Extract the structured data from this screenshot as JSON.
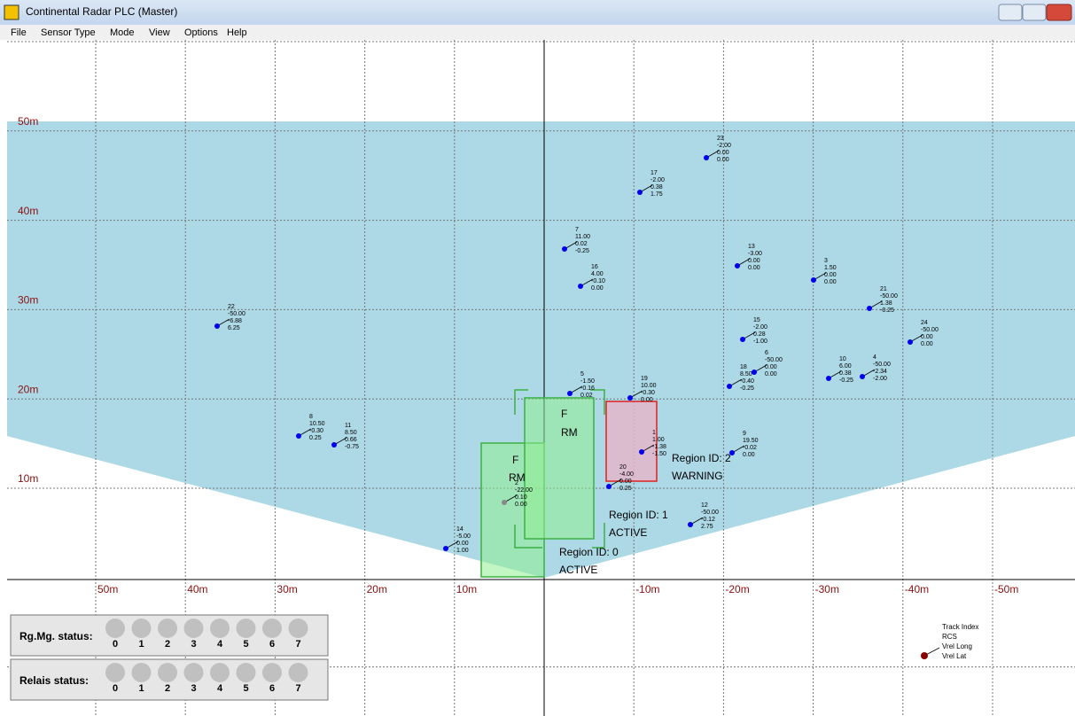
{
  "window": {
    "title": "Continental Radar PLC (Master)"
  },
  "menu": [
    "File",
    "Sensor Type",
    "Mode",
    "View",
    "Options",
    "Help"
  ],
  "y_labels": [
    "50m",
    "40m",
    "30m",
    "20m",
    "10m"
  ],
  "x_labels": [
    "50m",
    "40m",
    "30m",
    "20m",
    "10m",
    "-10m",
    "-20m",
    "-30m",
    "-40m",
    "-50m"
  ],
  "tracks": [
    {
      "index": "23",
      "rcs": "-2.00",
      "vlong": "0.00",
      "vlat": "0.00"
    },
    {
      "index": "17",
      "rcs": "-2.00",
      "vlong": "0.38",
      "vlat": "1.75"
    },
    {
      "index": "7",
      "rcs": "11.00",
      "vlong": "0.02",
      "vlat": "-0.25"
    },
    {
      "index": "16",
      "rcs": "4.00",
      "vlong": "-0.10",
      "vlat": "0.00"
    },
    {
      "index": "13",
      "rcs": "-3.00",
      "vlong": "0.00",
      "vlat": "0.00"
    },
    {
      "index": "3",
      "rcs": "1.50",
      "vlong": "0.00",
      "vlat": "0.00"
    },
    {
      "index": "21",
      "rcs": "-50.00",
      "vlong": "1.38",
      "vlat": "-0.25"
    },
    {
      "index": "22",
      "rcs": "-50.00",
      "vlong": "-6.88",
      "vlat": "6.25"
    },
    {
      "index": "15",
      "rcs": "-2.00",
      "vlong": "0.28",
      "vlat": "-1.00"
    },
    {
      "index": "24",
      "rcs": "-50.00",
      "vlong": "0.00",
      "vlat": "0.00"
    },
    {
      "index": "6",
      "rcs": "-50.00",
      "vlong": "0.00",
      "vlat": "0.00"
    },
    {
      "index": "18",
      "rcs": "8.50",
      "vlong": "-0.40",
      "vlat": "-0.25"
    },
    {
      "index": "10",
      "rcs": "6.00",
      "vlong": "0.38",
      "vlat": "-0.25"
    },
    {
      "index": "4",
      "rcs": "-50.00",
      "vlong": "-2.34",
      "vlat": "-2.00"
    },
    {
      "index": "5",
      "rcs": "-1.50",
      "vlong": "-0.16",
      "vlat": "0.02"
    },
    {
      "index": "19",
      "rcs": "10.00",
      "vlong": "-0.30",
      "vlat": "0.00"
    },
    {
      "index": "8",
      "rcs": "10.50",
      "vlong": "-0.30",
      "vlat": "0.25"
    },
    {
      "index": "11",
      "rcs": "8.50",
      "vlong": "0.66",
      "vlat": "-0.75"
    },
    {
      "index": "1",
      "rcs": "1.00",
      "vlong": "-1.38",
      "vlat": "-1.50"
    },
    {
      "index": "9",
      "rcs": "19.50",
      "vlong": "-0.02",
      "vlat": "0.00"
    },
    {
      "index": "20",
      "rcs": "-4.00",
      "vlong": "0.00",
      "vlat": "0.25"
    },
    {
      "index": "2",
      "rcs": "-22.00",
      "vlong": "0.10",
      "vlat": "0.00"
    },
    {
      "index": "12",
      "rcs": "-50.00",
      "vlong": "-0.12",
      "vlat": "2.75"
    },
    {
      "index": "14",
      "rcs": "-5.00",
      "vlong": "0.00",
      "vlat": "1.00"
    }
  ],
  "regions": [
    {
      "id": "Region ID: 0",
      "state": "ACTIVE",
      "f": "F",
      "rm": "RM"
    },
    {
      "id": "Region ID: 1",
      "state": "ACTIVE",
      "f": "F",
      "rm": "RM"
    },
    {
      "id": "Region ID: 2",
      "state": "WARNING"
    }
  ],
  "status": [
    {
      "label": "Rg.Mg. status:",
      "digits": [
        "0",
        "1",
        "2",
        "3",
        "4",
        "5",
        "6",
        "7"
      ]
    },
    {
      "label": "Relais status:",
      "digits": [
        "0",
        "1",
        "2",
        "3",
        "4",
        "5",
        "6",
        "7"
      ]
    }
  ],
  "legend": [
    "Track Index",
    "RCS",
    "Vrel Long",
    "Vrel Lat"
  ]
}
